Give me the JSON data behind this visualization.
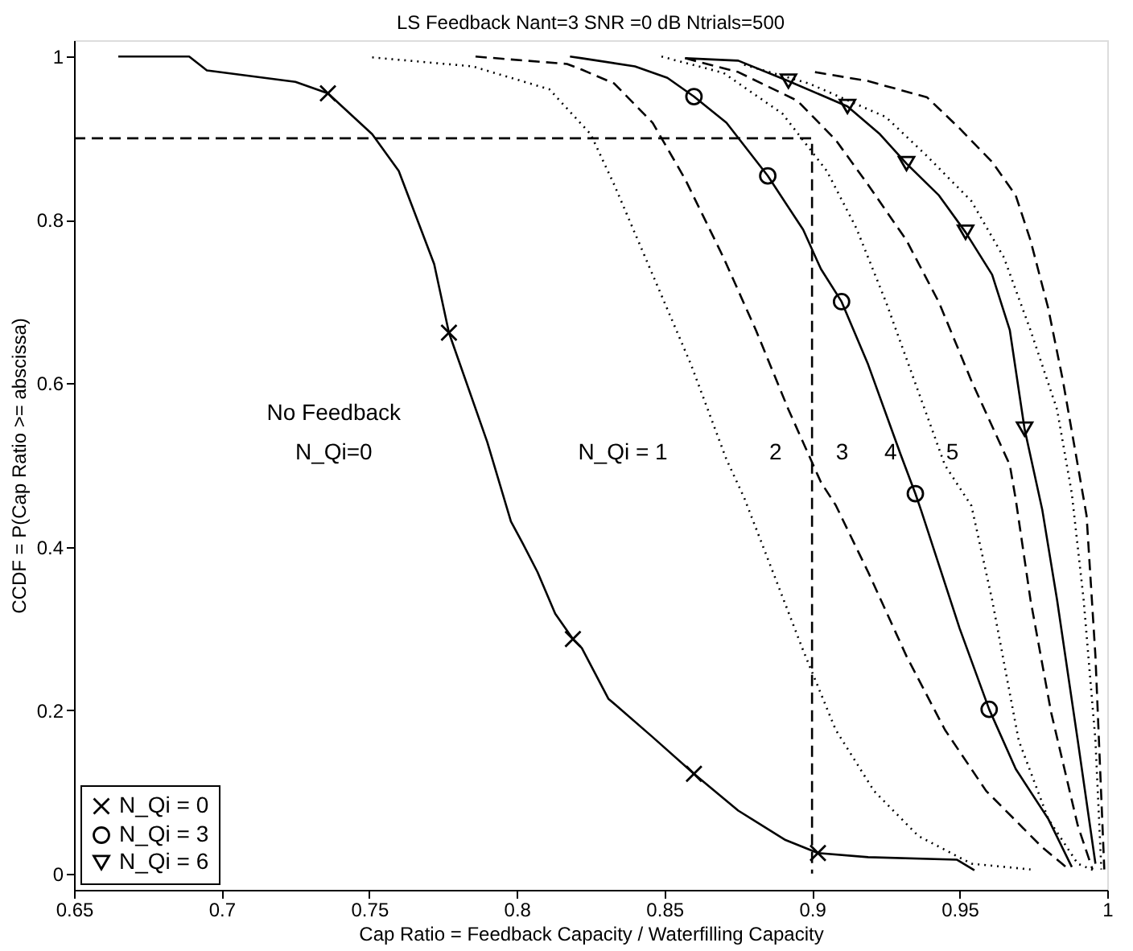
{
  "chart_data": {
    "type": "line",
    "title": "LS Feedback Nant=3 SNR =0 dB Ntrials=500",
    "xlabel": "Cap Ratio = Feedback Capacity / Waterfilling Capacity",
    "ylabel": "CCDF = P(Cap Ratio >= abscissa)",
    "xlim": [
      0.65,
      1
    ],
    "ylim": [
      -0.02,
      1.02
    ],
    "xticks": [
      0.65,
      0.7,
      0.75,
      0.8,
      0.85,
      0.9,
      0.95,
      1
    ],
    "yticks": [
      0,
      0.2,
      0.4,
      0.6,
      0.8,
      1
    ],
    "grid": false,
    "legend": "bottom left",
    "annotations": [
      "No Feedback",
      "N_Qi=0",
      "N_Qi = 1",
      "2",
      "3",
      "4",
      "5"
    ],
    "series": [
      {
        "line_style": "solid",
        "color": "#000000",
        "x": [
          0.665,
          0.689,
          0.695,
          0.725,
          0.736,
          0.751,
          0.76,
          0.772,
          0.777,
          0.79,
          0.798,
          0.802,
          0.807,
          0.813,
          0.819,
          0.822,
          0.831,
          0.846,
          0.86,
          0.875,
          0.891,
          0.902,
          0.919,
          0.949,
          0.955
        ],
        "values": [
          1.0,
          1.0,
          0.983,
          0.969,
          0.955,
          0.905,
          0.86,
          0.746,
          0.662,
          0.528,
          0.431,
          0.404,
          0.369,
          0.318,
          0.287,
          0.276,
          0.214,
          0.167,
          0.122,
          0.077,
          0.041,
          0.025,
          0.02,
          0.017,
          0.004
        ]
      },
      {
        "line_style": "dotted",
        "color": "#000000",
        "x": [
          0.751,
          0.785,
          0.811,
          0.825,
          0.833,
          0.846,
          0.859,
          0.871,
          0.877,
          0.886,
          0.897,
          0.908,
          0.921,
          0.936,
          0.954,
          0.974
        ],
        "values": [
          0.999,
          0.988,
          0.96,
          0.905,
          0.843,
          0.733,
          0.623,
          0.507,
          0.46,
          0.376,
          0.273,
          0.176,
          0.101,
          0.046,
          0.012,
          0.005
        ]
      },
      {
        "line_style": "dashed",
        "color": "#000000",
        "x": [
          0.786,
          0.817,
          0.822,
          0.833,
          0.846,
          0.857,
          0.87,
          0.881,
          0.892,
          0.903,
          0.908,
          0.919,
          0.932,
          0.945,
          0.959,
          0.978,
          0.987
        ],
        "values": [
          1.0,
          0.991,
          0.984,
          0.967,
          0.919,
          0.85,
          0.754,
          0.665,
          0.568,
          0.479,
          0.451,
          0.369,
          0.266,
          0.176,
          0.101,
          0.032,
          0.005
        ]
      },
      {
        "line_style": "solid",
        "color": "#000000",
        "x": [
          0.818,
          0.822,
          0.84,
          0.851,
          0.86,
          0.871,
          0.885,
          0.897,
          0.903,
          0.91,
          0.919,
          0.93,
          0.935,
          0.937,
          0.95,
          0.96,
          0.969,
          0.98,
          0.988
        ],
        "values": [
          1.0,
          0.998,
          0.988,
          0.974,
          0.951,
          0.919,
          0.854,
          0.788,
          0.74,
          0.7,
          0.623,
          0.513,
          0.465,
          0.444,
          0.3,
          0.201,
          0.128,
          0.067,
          0.008
        ]
      },
      {
        "line_style": "dotted",
        "color": "#000000",
        "x": [
          0.849,
          0.87,
          0.89,
          0.905,
          0.915,
          0.925,
          0.935,
          0.945,
          0.954,
          0.961,
          0.97,
          0.98,
          0.99,
          0.996
        ],
        "values": [
          1.0,
          0.98,
          0.93,
          0.86,
          0.79,
          0.7,
          0.6,
          0.5,
          0.45,
          0.335,
          0.163,
          0.067,
          0.012,
          0.003
        ]
      },
      {
        "line_style": "dashed",
        "color": "#000000",
        "x": [
          0.857,
          0.875,
          0.895,
          0.908,
          0.919,
          0.932,
          0.943,
          0.954,
          0.967,
          0.969,
          0.974,
          0.981,
          0.99,
          0.995
        ],
        "values": [
          0.998,
          0.981,
          0.946,
          0.898,
          0.843,
          0.775,
          0.699,
          0.603,
          0.5,
          0.458,
          0.335,
          0.197,
          0.059,
          0.005
        ]
      },
      {
        "line_style": "solid",
        "color": "#000000",
        "x": [
          0.857,
          0.875,
          0.892,
          0.903,
          0.912,
          0.923,
          0.932,
          0.943,
          0.952,
          0.961,
          0.967,
          0.972,
          0.978,
          0.983,
          0.99,
          0.996
        ],
        "values": [
          0.998,
          0.995,
          0.97,
          0.953,
          0.939,
          0.905,
          0.869,
          0.83,
          0.785,
          0.733,
          0.665,
          0.544,
          0.445,
          0.335,
          0.163,
          0.012
        ]
      },
      {
        "line_style": "dotted",
        "color": "#000000",
        "x": [
          0.877,
          0.899,
          0.925,
          0.939,
          0.954,
          0.965,
          0.974,
          0.983,
          0.988,
          0.992,
          0.996,
          0.998
        ],
        "values": [
          0.99,
          0.967,
          0.926,
          0.878,
          0.823,
          0.754,
          0.665,
          0.568,
          0.465,
          0.335,
          0.163,
          0.005
        ]
      },
      {
        "line_style": "dashed",
        "color": "#000000",
        "x": [
          0.901,
          0.919,
          0.939,
          0.95,
          0.961,
          0.969,
          0.974,
          0.98,
          0.985,
          0.99,
          0.993,
          0.996,
          0.999
        ],
        "values": [
          0.981,
          0.97,
          0.95,
          0.912,
          0.871,
          0.83,
          0.775,
          0.692,
          0.603,
          0.5,
          0.438,
          0.266,
          0.005
        ]
      },
      {
        "line_style": "dashed",
        "color": "#000000",
        "x": [
          0.65,
          0.9,
          0.9
        ],
        "values": [
          0.9,
          0.9,
          0.0
        ]
      },
      {
        "type": "scatter",
        "name": "N_Qi = 0",
        "marker": "cross",
        "color": "#000000",
        "x": [
          0.736,
          0.777,
          0.819,
          0.86,
          0.902
        ],
        "values": [
          0.955,
          0.662,
          0.287,
          0.122,
          0.025
        ]
      },
      {
        "type": "scatter",
        "name": "N_Qi = 3",
        "marker": "circle",
        "color": "#000000",
        "x": [
          0.86,
          0.885,
          0.91,
          0.935,
          0.96
        ],
        "values": [
          0.951,
          0.854,
          0.7,
          0.465,
          0.201
        ]
      },
      {
        "type": "scatter",
        "name": "N_Qi = 6",
        "marker": "triangle",
        "color": "#000000",
        "x": [
          0.892,
          0.912,
          0.932,
          0.952,
          0.972
        ],
        "values": [
          0.97,
          0.939,
          0.869,
          0.785,
          0.544
        ]
      }
    ]
  }
}
